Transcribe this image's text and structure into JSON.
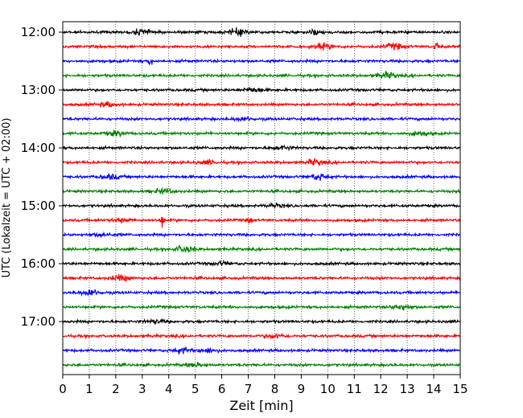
{
  "chart_data": {
    "type": "line",
    "title": "",
    "xlabel": "Zeit  [min]",
    "ylabel": "UTC (Lokalzeit = UTC + 02:00)",
    "xlim": [
      0,
      15
    ],
    "x_ticks": [
      "0",
      "1",
      "2",
      "3",
      "4",
      "5",
      "6",
      "7",
      "8",
      "9",
      "10",
      "11",
      "12",
      "13",
      "14",
      "15"
    ],
    "y_ticks": [
      "12:00",
      "13:00",
      "14:00",
      "15:00",
      "16:00",
      "17:00"
    ],
    "grid": "vertical-dotted",
    "trace_interval_min": 15,
    "trace_colors": [
      "#000000",
      "#ff0000",
      "#0000ff",
      "#008000"
    ],
    "traces": [
      {
        "start": "12:00",
        "color": "#000000",
        "events": [
          {
            "t": 3.0,
            "amp": 2.2
          },
          {
            "t": 6.6,
            "amp": 2.5
          },
          {
            "t": 9.5,
            "amp": 1.6
          }
        ]
      },
      {
        "start": "12:15",
        "color": "#ff0000",
        "events": [
          {
            "t": 9.8,
            "amp": 2.0
          },
          {
            "t": 12.5,
            "amp": 2.2
          },
          {
            "t": 14.1,
            "amp": 4.0
          }
        ]
      },
      {
        "start": "12:30",
        "color": "#0000ff",
        "events": [
          {
            "t": 3.3,
            "amp": 4.5
          }
        ]
      },
      {
        "start": "12:45",
        "color": "#008000",
        "events": [
          {
            "t": 12.2,
            "amp": 2.4
          }
        ]
      },
      {
        "start": "13:00",
        "color": "#000000",
        "events": [
          {
            "t": 7.2,
            "amp": 1.8
          }
        ]
      },
      {
        "start": "13:15",
        "color": "#ff0000",
        "events": [
          {
            "t": 1.7,
            "amp": 1.6
          }
        ]
      },
      {
        "start": "13:30",
        "color": "#0000ff",
        "events": [
          {
            "t": 6.8,
            "amp": 1.4
          }
        ]
      },
      {
        "start": "13:45",
        "color": "#008000",
        "events": [
          {
            "t": 2.0,
            "amp": 1.8
          },
          {
            "t": 13.5,
            "amp": 1.6
          }
        ]
      },
      {
        "start": "14:00",
        "color": "#000000",
        "events": [
          {
            "t": 8.3,
            "amp": 1.5
          }
        ]
      },
      {
        "start": "14:15",
        "color": "#ff0000",
        "events": [
          {
            "t": 5.5,
            "amp": 1.6
          },
          {
            "t": 9.5,
            "amp": 2.2
          }
        ]
      },
      {
        "start": "14:30",
        "color": "#0000ff",
        "events": [
          {
            "t": 1.8,
            "amp": 1.8
          },
          {
            "t": 9.7,
            "amp": 2.5
          }
        ]
      },
      {
        "start": "14:45",
        "color": "#008000",
        "events": [
          {
            "t": 3.8,
            "amp": 1.8
          }
        ]
      },
      {
        "start": "15:00",
        "color": "#000000",
        "events": [
          {
            "t": 8.0,
            "amp": 1.3
          }
        ]
      },
      {
        "start": "15:15",
        "color": "#ff0000",
        "events": [
          {
            "t": 3.75,
            "amp": 6.0
          },
          {
            "t": 7.05,
            "amp": 4.5
          },
          {
            "t": 2.2,
            "amp": 1.5
          }
        ]
      },
      {
        "start": "15:30",
        "color": "#0000ff",
        "events": [
          {
            "t": 1.5,
            "amp": 1.5
          }
        ]
      },
      {
        "start": "15:45",
        "color": "#008000",
        "events": [
          {
            "t": 4.6,
            "amp": 2.6
          }
        ]
      },
      {
        "start": "16:00",
        "color": "#000000",
        "events": [
          {
            "t": 6.0,
            "amp": 1.3
          }
        ]
      },
      {
        "start": "16:15",
        "color": "#ff0000",
        "events": [
          {
            "t": 2.2,
            "amp": 2.2
          }
        ]
      },
      {
        "start": "16:30",
        "color": "#0000ff",
        "events": [
          {
            "t": 1.0,
            "amp": 2.4
          }
        ]
      },
      {
        "start": "16:45",
        "color": "#008000",
        "events": [
          {
            "t": 12.8,
            "amp": 2.2
          }
        ]
      },
      {
        "start": "17:00",
        "color": "#000000",
        "events": [
          {
            "t": 3.5,
            "amp": 1.4
          }
        ]
      },
      {
        "start": "17:15",
        "color": "#ff0000",
        "events": [
          {
            "t": 8.0,
            "amp": 1.8
          }
        ]
      },
      {
        "start": "17:30",
        "color": "#0000ff",
        "events": [
          {
            "t": 4.5,
            "amp": 2.2
          },
          {
            "t": 5.5,
            "amp": 1.8
          }
        ]
      },
      {
        "start": "17:45",
        "color": "#008000",
        "events": [
          {
            "t": 5.0,
            "amp": 1.3
          }
        ]
      }
    ]
  }
}
